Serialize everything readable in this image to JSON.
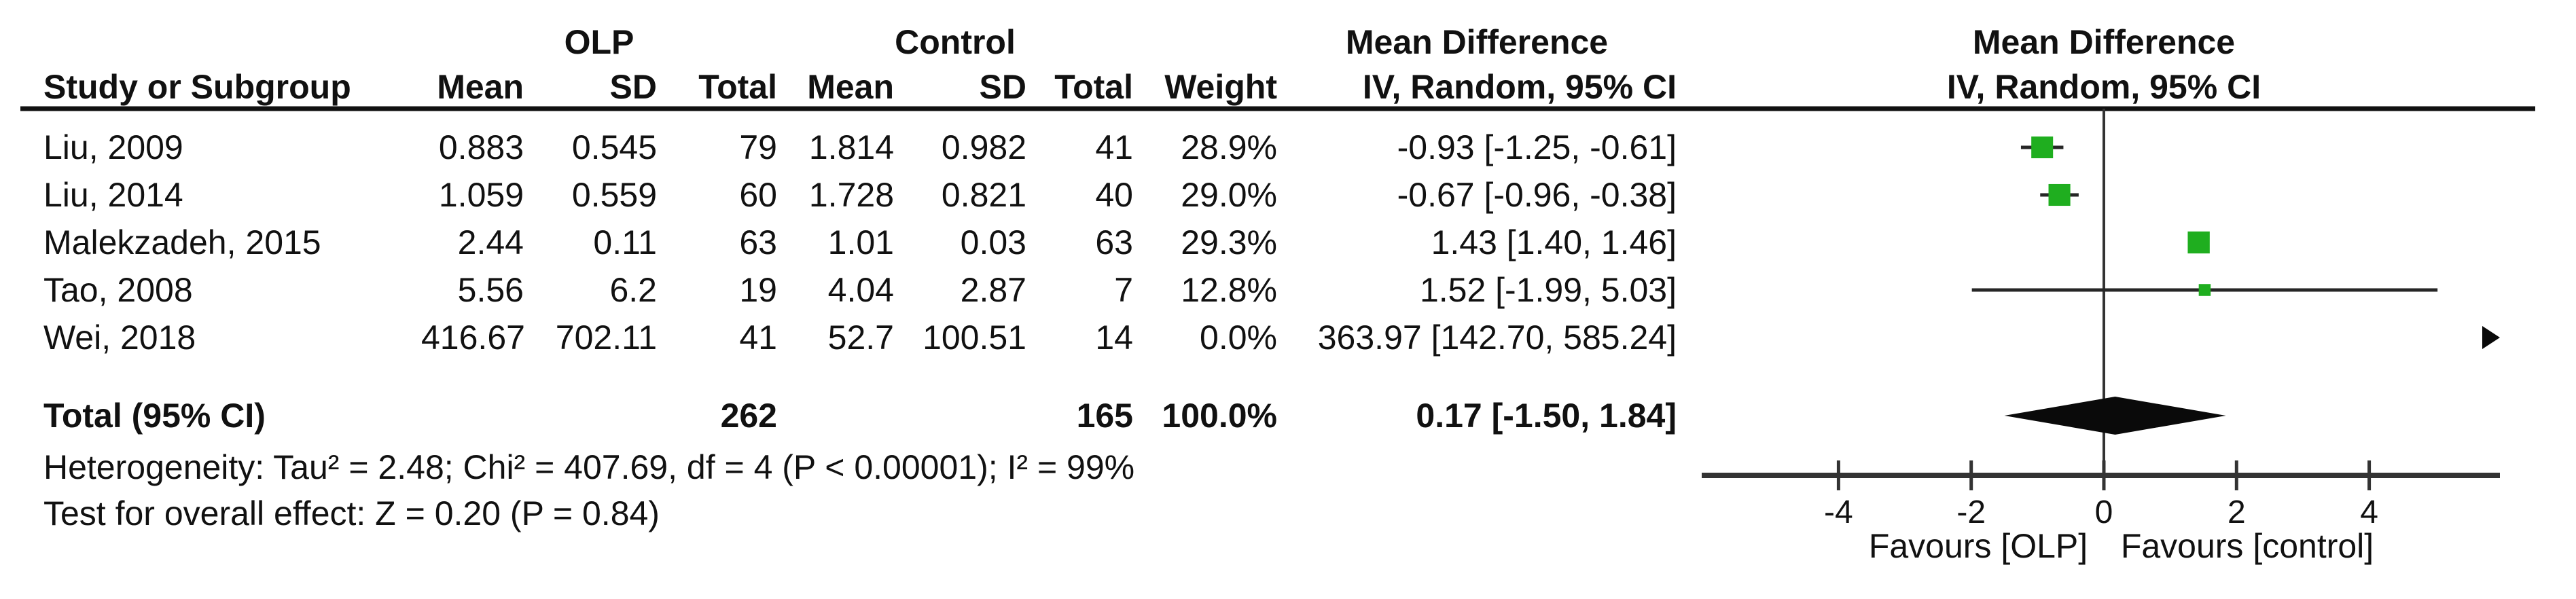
{
  "figure": {
    "group_headers": {
      "olp": "OLP",
      "control": "Control",
      "md_table_line1": "Mean Difference",
      "md_table_line2": "IV, Random, 95% CI",
      "md_plot_line1": "Mean Difference",
      "md_plot_line2": "IV, Random, 95% CI"
    },
    "col_headers": {
      "study": "Study or Subgroup",
      "mean": "Mean",
      "sd": "SD",
      "total": "Total",
      "weight": "Weight"
    },
    "rows": [
      {
        "study": "Liu, 2009",
        "olp_mean": "0.883",
        "olp_sd": "0.545",
        "olp_total": "79",
        "c_mean": "1.814",
        "c_sd": "0.982",
        "c_total": "41",
        "weight": "28.9%",
        "md_ci": "-0.93 [-1.25, -0.61]"
      },
      {
        "study": "Liu, 2014",
        "olp_mean": "1.059",
        "olp_sd": "0.559",
        "olp_total": "60",
        "c_mean": "1.728",
        "c_sd": "0.821",
        "c_total": "40",
        "weight": "29.0%",
        "md_ci": "-0.67 [-0.96, -0.38]"
      },
      {
        "study": "Malekzadeh, 2015",
        "olp_mean": "2.44",
        "olp_sd": "0.11",
        "olp_total": "63",
        "c_mean": "1.01",
        "c_sd": "0.03",
        "c_total": "63",
        "weight": "29.3%",
        "md_ci": "1.43 [1.40, 1.46]"
      },
      {
        "study": "Tao, 2008",
        "olp_mean": "5.56",
        "olp_sd": "6.2",
        "olp_total": "19",
        "c_mean": "4.04",
        "c_sd": "2.87",
        "c_total": "7",
        "weight": "12.8%",
        "md_ci": "1.52 [-1.99, 5.03]"
      },
      {
        "study": "Wei, 2018",
        "olp_mean": "416.67",
        "olp_sd": "702.11",
        "olp_total": "41",
        "c_mean": "52.7",
        "c_sd": "100.51",
        "c_total": "14",
        "weight": "0.0%",
        "md_ci": "363.97 [142.70, 585.24]"
      }
    ],
    "total_row": {
      "label": "Total (95% CI)",
      "olp_total": "262",
      "c_total": "165",
      "weight": "100.0%",
      "md_ci": "0.17 [-1.50, 1.84]"
    },
    "heterogeneity": "Heterogeneity: Tau² = 2.48; Chi² = 407.69, df = 4 (P < 0.00001); I² = 99%",
    "overall_effect": "Test for overall effect: Z = 0.20 (P = 0.84)",
    "axis_labels": {
      "favours_left": "Favours [OLP]",
      "favours_right": "Favours [control]"
    },
    "colors": {
      "square_green": "#1fae1f",
      "line_dark": "#333333",
      "diamond_black": "#0a0a0a",
      "text": "#111111"
    }
  },
  "chart_data": {
    "type": "scatter",
    "variant": "forest_plot",
    "title": "Mean Difference",
    "effect_model": "IV, Random, 95% CI",
    "comparison_groups": [
      "OLP",
      "Control"
    ],
    "studies": [
      {
        "name": "Liu, 2009",
        "olp": {
          "mean": 0.883,
          "sd": 0.545,
          "total": 79
        },
        "control": {
          "mean": 1.814,
          "sd": 0.982,
          "total": 41
        },
        "weight_pct": 28.9,
        "md": -0.93,
        "ci_low": -1.25,
        "ci_high": -0.61
      },
      {
        "name": "Liu, 2014",
        "olp": {
          "mean": 1.059,
          "sd": 0.559,
          "total": 60
        },
        "control": {
          "mean": 1.728,
          "sd": 0.821,
          "total": 40
        },
        "weight_pct": 29.0,
        "md": -0.67,
        "ci_low": -0.96,
        "ci_high": -0.38
      },
      {
        "name": "Malekzadeh, 2015",
        "olp": {
          "mean": 2.44,
          "sd": 0.11,
          "total": 63
        },
        "control": {
          "mean": 1.01,
          "sd": 0.03,
          "total": 63
        },
        "weight_pct": 29.3,
        "md": 1.43,
        "ci_low": 1.4,
        "ci_high": 1.46
      },
      {
        "name": "Tao, 2008",
        "olp": {
          "mean": 5.56,
          "sd": 6.2,
          "total": 19
        },
        "control": {
          "mean": 4.04,
          "sd": 2.87,
          "total": 7
        },
        "weight_pct": 12.8,
        "md": 1.52,
        "ci_low": -1.99,
        "ci_high": 5.03
      },
      {
        "name": "Wei, 2018",
        "olp": {
          "mean": 416.67,
          "sd": 702.11,
          "total": 41
        },
        "control": {
          "mean": 52.7,
          "sd": 100.51,
          "total": 14
        },
        "weight_pct": 0.0,
        "md": 363.97,
        "ci_low": 142.7,
        "ci_high": 585.24
      }
    ],
    "total": {
      "label": "Total (95% CI)",
      "olp_total": 262,
      "control_total": 165,
      "weight_pct": 100.0,
      "md": 0.17,
      "ci_low": -1.5,
      "ci_high": 1.84
    },
    "heterogeneity": {
      "tau2": 2.48,
      "chi2": 407.69,
      "df": 4,
      "p": "< 0.00001",
      "i2_pct": 99
    },
    "overall_effect": {
      "z": 0.2,
      "p": 0.84
    },
    "xlim": [
      -6,
      6
    ],
    "x_ticks": [
      -4,
      -2,
      0,
      2,
      4
    ],
    "zero_line": 0,
    "legend_position": "none",
    "grid": false,
    "x_axis_annotations": {
      "left": "Favours [OLP]",
      "right": "Favours [control]"
    }
  }
}
